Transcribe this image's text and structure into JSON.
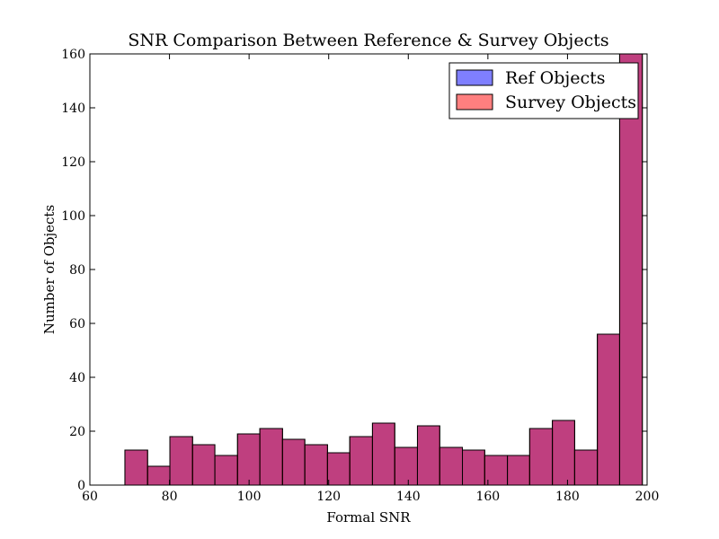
{
  "chart_data": {
    "type": "histogram",
    "title": "SNR Comparison Between Reference & Survey Objects",
    "xlabel": "Formal SNR",
    "ylabel": "Number of Objects",
    "xlim": [
      60,
      200
    ],
    "ylim": [
      0,
      160
    ],
    "xticks": [
      60,
      80,
      100,
      120,
      140,
      160,
      180,
      200
    ],
    "yticks": [
      0,
      20,
      40,
      60,
      80,
      100,
      120,
      140,
      160
    ],
    "grid": false,
    "legend_position": "top-right",
    "bin_edges": [
      68.8,
      74.5,
      80.1,
      85.8,
      91.4,
      97.1,
      102.7,
      108.4,
      114.0,
      119.7,
      125.3,
      131.0,
      136.6,
      142.3,
      147.9,
      153.6,
      159.2,
      164.9,
      170.5,
      176.2,
      181.8,
      187.5,
      193.1,
      198.8
    ],
    "series": [
      {
        "name": "Ref Objects",
        "color": "#0000ff",
        "alpha": 0.5,
        "values": [
          13,
          7,
          18,
          15,
          11,
          19,
          21,
          17,
          15,
          12,
          18,
          23,
          14,
          22,
          14,
          13,
          11,
          11,
          21,
          24,
          13,
          56,
          160
        ]
      },
      {
        "name": "Survey Objects",
        "color": "#ff0000",
        "alpha": 0.5,
        "values": [
          13,
          7,
          18,
          15,
          11,
          19,
          21,
          17,
          15,
          12,
          18,
          23,
          14,
          22,
          14,
          13,
          11,
          11,
          21,
          24,
          13,
          56,
          160
        ]
      }
    ]
  }
}
